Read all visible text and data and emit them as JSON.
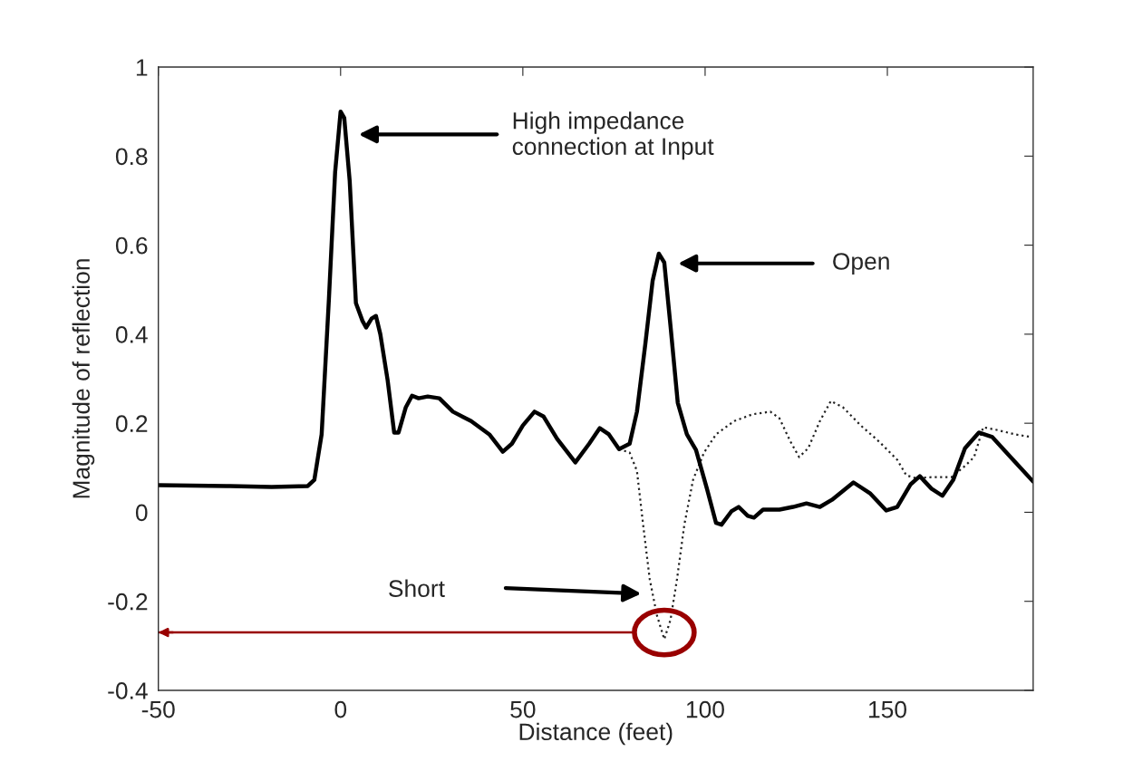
{
  "chart_data": {
    "type": "line",
    "xlabel": "Distance (feet)",
    "ylabel": "Magnitude of reflection",
    "xlim": [
      -50,
      190
    ],
    "xticks": [
      -50,
      0,
      50,
      100,
      150
    ],
    "ylim": [
      -0.4,
      1
    ],
    "yticks": [
      -0.4,
      -0.2,
      0,
      0.2,
      0.4,
      0.6,
      0.8,
      1
    ],
    "grid": false,
    "legend": false,
    "series": [
      {
        "color": "#000000",
        "line_style": "solid",
        "x": [
          -50,
          -31.3,
          -18.9,
          -9,
          -7.2,
          -5.2,
          -3.2,
          -1.5,
          0,
          1,
          2.5,
          4.2,
          6,
          7,
          8.5,
          9.7,
          10.9,
          12.9,
          14.7,
          15.9,
          17.9,
          19.6,
          21.4,
          23.9,
          27.1,
          30.8,
          35.8,
          40.8,
          44.5,
          47,
          50,
          53.2,
          55.7,
          59.4,
          64.4,
          68.2,
          71.1,
          73.6,
          76.4,
          79.3,
          81.3,
          83.6,
          85.6,
          87.3,
          88.8,
          90.5,
          92.5,
          95,
          97.5,
          100.5,
          103,
          104.5,
          107.2,
          109.2,
          111.7,
          113.4,
          115.9,
          120.4,
          124.1,
          127.8,
          131.5,
          134.8,
          140.7,
          145.2,
          149.7,
          152.7,
          156.4,
          158.9,
          162.1,
          165.1,
          168.1,
          171.3,
          175.1,
          178.8,
          183.8,
          190
        ],
        "values": [
          0.061,
          0.059,
          0.057,
          0.059,
          0.073,
          0.175,
          0.48,
          0.764,
          0.9,
          0.886,
          0.744,
          0.47,
          0.43,
          0.415,
          0.435,
          0.441,
          0.4,
          0.297,
          0.179,
          0.179,
          0.236,
          0.262,
          0.256,
          0.26,
          0.256,
          0.226,
          0.205,
          0.175,
          0.136,
          0.154,
          0.195,
          0.226,
          0.215,
          0.165,
          0.112,
          0.154,
          0.189,
          0.175,
          0.142,
          0.154,
          0.226,
          0.378,
          0.52,
          0.581,
          0.561,
          0.419,
          0.246,
          0.175,
          0.14,
          0.053,
          -0.024,
          -0.028,
          0.002,
          0.012,
          -0.008,
          -0.012,
          0.006,
          0.006,
          0.012,
          0.02,
          0.012,
          0.028,
          0.067,
          0.043,
          0.004,
          0.012,
          0.063,
          0.081,
          0.053,
          0.037,
          0.073,
          0.144,
          0.179,
          0.169,
          0.124,
          0.069
        ]
      },
      {
        "color": "#222222",
        "line_style": "dotted",
        "x": [
          76.4,
          79.3,
          81.3,
          83,
          84.8,
          86.8,
          88.8,
          90.5,
          92.3,
          94.3,
          96.7,
          99.7,
          103,
          108,
          113,
          117.9,
          120.4,
          123.4,
          125.8,
          128.3,
          131.5,
          134.5,
          137.8,
          142.7,
          147.7,
          152.7,
          155.2,
          157.7,
          162.6,
          167.6,
          171.3,
          173.8,
          176.3,
          180,
          185,
          189.5
        ],
        "values": [
          0.142,
          0.134,
          0.093,
          -0.028,
          -0.15,
          -0.232,
          -0.285,
          -0.242,
          -0.15,
          -0.028,
          0.073,
          0.134,
          0.175,
          0.205,
          0.22,
          0.226,
          0.211,
          0.159,
          0.124,
          0.144,
          0.205,
          0.25,
          0.236,
          0.195,
          0.159,
          0.118,
          0.083,
          0.077,
          0.079,
          0.079,
          0.104,
          0.124,
          0.191,
          0.185,
          0.175,
          0.169
        ]
      }
    ],
    "annotations": [
      "High impedance\nconnection at Input",
      "Open",
      "Short"
    ],
    "ref_lines": [
      {
        "axis": "y",
        "value": -0.27,
        "color": "#990000"
      }
    ]
  }
}
